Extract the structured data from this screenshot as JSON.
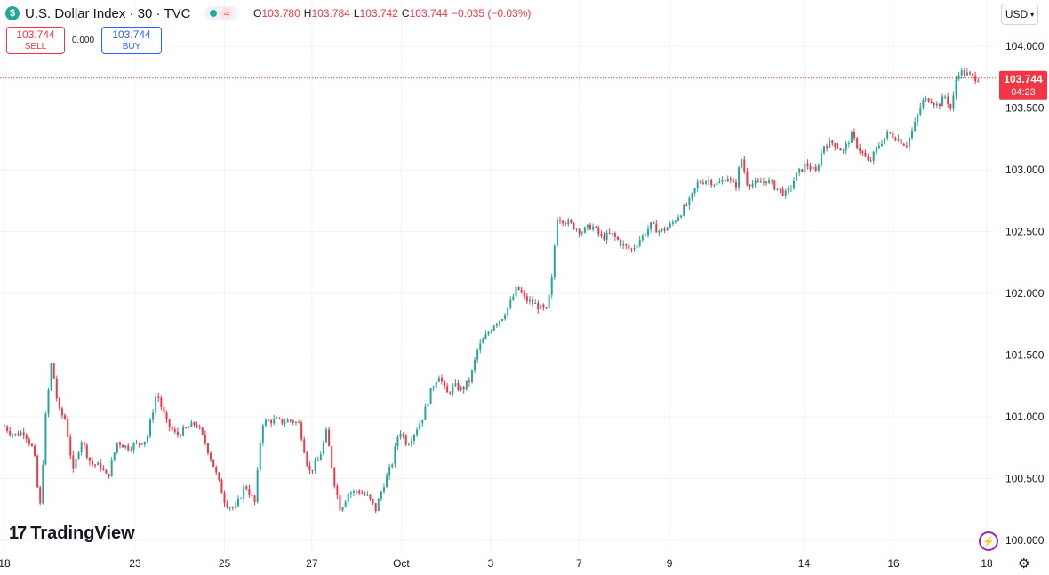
{
  "header": {
    "symbol_badge": "$",
    "title": "U.S. Dollar Index · 30 · TVC",
    "status_icon": "wave-icon",
    "ohlc": [
      {
        "k": "O",
        "v": "103.780"
      },
      {
        "k": "H",
        "v": "103.784"
      },
      {
        "k": "L",
        "v": "103.742"
      },
      {
        "k": "C",
        "v": "103.744"
      },
      {
        "k": "",
        "v": "−0.035 (−0.03%)"
      }
    ]
  },
  "trade": {
    "sell_price": "103.744",
    "sell_label": "SELL",
    "spread": "0.000",
    "buy_price": "103.744",
    "buy_label": "BUY"
  },
  "currency": "USD",
  "watermark": "TradingView",
  "price_label": {
    "value": "103.744",
    "countdown": "04:23"
  },
  "colors": {
    "up": "#26a69a",
    "down": "#f23645",
    "grid": "#f0f3fa",
    "axis_text": "#131722"
  },
  "chart_data": {
    "type": "candlestick",
    "title": "U.S. Dollar Index · 30 · TVC",
    "y_ticks": [
      "104.000",
      "103.500",
      "103.000",
      "102.500",
      "102.000",
      "101.500",
      "101.000",
      "100.500",
      "100.000"
    ],
    "ylim": [
      99.97,
      104.16
    ],
    "x_ticks": [
      "18",
      "23",
      "25",
      "27",
      "Oct",
      "3",
      "7",
      "9",
      "14",
      "16",
      "18"
    ],
    "x_tick_pos": [
      0.0,
      0.133,
      0.224,
      0.313,
      0.404,
      0.495,
      0.585,
      0.677,
      0.814,
      0.905,
      1.0
    ],
    "last_price": 103.744,
    "grid": true,
    "price_path": [
      [
        0.0,
        100.92
      ],
      [
        0.01,
        100.85
      ],
      [
        0.02,
        100.88
      ],
      [
        0.03,
        100.72
      ],
      [
        0.036,
        100.23
      ],
      [
        0.042,
        101.0
      ],
      [
        0.048,
        101.45
      ],
      [
        0.055,
        101.05
      ],
      [
        0.062,
        100.98
      ],
      [
        0.07,
        100.55
      ],
      [
        0.078,
        100.82
      ],
      [
        0.088,
        100.62
      ],
      [
        0.098,
        100.6
      ],
      [
        0.105,
        100.5
      ],
      [
        0.115,
        100.8
      ],
      [
        0.125,
        100.75
      ],
      [
        0.135,
        100.78
      ],
      [
        0.145,
        100.82
      ],
      [
        0.155,
        101.2
      ],
      [
        0.165,
        100.95
      ],
      [
        0.175,
        100.85
      ],
      [
        0.185,
        100.9
      ],
      [
        0.195,
        100.95
      ],
      [
        0.205,
        100.78
      ],
      [
        0.215,
        100.55
      ],
      [
        0.225,
        100.3
      ],
      [
        0.235,
        100.25
      ],
      [
        0.245,
        100.45
      ],
      [
        0.255,
        100.3
      ],
      [
        0.262,
        100.95
      ],
      [
        0.272,
        100.97
      ],
      [
        0.282,
        100.96
      ],
      [
        0.292,
        100.97
      ],
      [
        0.3,
        100.94
      ],
      [
        0.31,
        100.55
      ],
      [
        0.32,
        100.65
      ],
      [
        0.328,
        100.88
      ],
      [
        0.335,
        100.5
      ],
      [
        0.342,
        100.25
      ],
      [
        0.35,
        100.38
      ],
      [
        0.36,
        100.4
      ],
      [
        0.37,
        100.35
      ],
      [
        0.378,
        100.25
      ],
      [
        0.386,
        100.45
      ],
      [
        0.394,
        100.6
      ],
      [
        0.402,
        100.9
      ],
      [
        0.41,
        100.78
      ],
      [
        0.418,
        100.88
      ],
      [
        0.426,
        101.0
      ],
      [
        0.434,
        101.2
      ],
      [
        0.442,
        101.35
      ],
      [
        0.45,
        101.18
      ],
      [
        0.458,
        101.25
      ],
      [
        0.466,
        101.22
      ],
      [
        0.474,
        101.3
      ],
      [
        0.482,
        101.55
      ],
      [
        0.49,
        101.65
      ],
      [
        0.498,
        101.75
      ],
      [
        0.506,
        101.8
      ],
      [
        0.514,
        101.9
      ],
      [
        0.522,
        102.05
      ],
      [
        0.53,
        101.95
      ],
      [
        0.538,
        101.92
      ],
      [
        0.546,
        101.88
      ],
      [
        0.552,
        101.85
      ],
      [
        0.558,
        102.15
      ],
      [
        0.562,
        102.62
      ],
      [
        0.568,
        102.6
      ],
      [
        0.578,
        102.55
      ],
      [
        0.588,
        102.5
      ],
      [
        0.598,
        102.55
      ],
      [
        0.608,
        102.45
      ],
      [
        0.618,
        102.48
      ],
      [
        0.628,
        102.4
      ],
      [
        0.638,
        102.35
      ],
      [
        0.648,
        102.45
      ],
      [
        0.658,
        102.55
      ],
      [
        0.668,
        102.5
      ],
      [
        0.678,
        102.55
      ],
      [
        0.688,
        102.65
      ],
      [
        0.698,
        102.75
      ],
      [
        0.706,
        102.9
      ],
      [
        0.716,
        102.92
      ],
      [
        0.726,
        102.88
      ],
      [
        0.736,
        102.95
      ],
      [
        0.744,
        102.85
      ],
      [
        0.75,
        103.1
      ],
      [
        0.756,
        102.9
      ],
      [
        0.766,
        102.88
      ],
      [
        0.776,
        102.92
      ],
      [
        0.786,
        102.85
      ],
      [
        0.796,
        102.8
      ],
      [
        0.806,
        102.95
      ],
      [
        0.816,
        103.05
      ],
      [
        0.826,
        102.98
      ],
      [
        0.834,
        103.2
      ],
      [
        0.844,
        103.22
      ],
      [
        0.854,
        103.15
      ],
      [
        0.862,
        103.28
      ],
      [
        0.872,
        103.15
      ],
      [
        0.88,
        103.05
      ],
      [
        0.89,
        103.2
      ],
      [
        0.9,
        103.3
      ],
      [
        0.91,
        103.25
      ],
      [
        0.918,
        103.2
      ],
      [
        0.926,
        103.35
      ],
      [
        0.934,
        103.55
      ],
      [
        0.942,
        103.58
      ],
      [
        0.95,
        103.52
      ],
      [
        0.958,
        103.6
      ],
      [
        0.964,
        103.48
      ],
      [
        0.97,
        103.8
      ],
      [
        0.978,
        103.78
      ],
      [
        0.986,
        103.75
      ],
      [
        0.992,
        103.744
      ]
    ]
  }
}
